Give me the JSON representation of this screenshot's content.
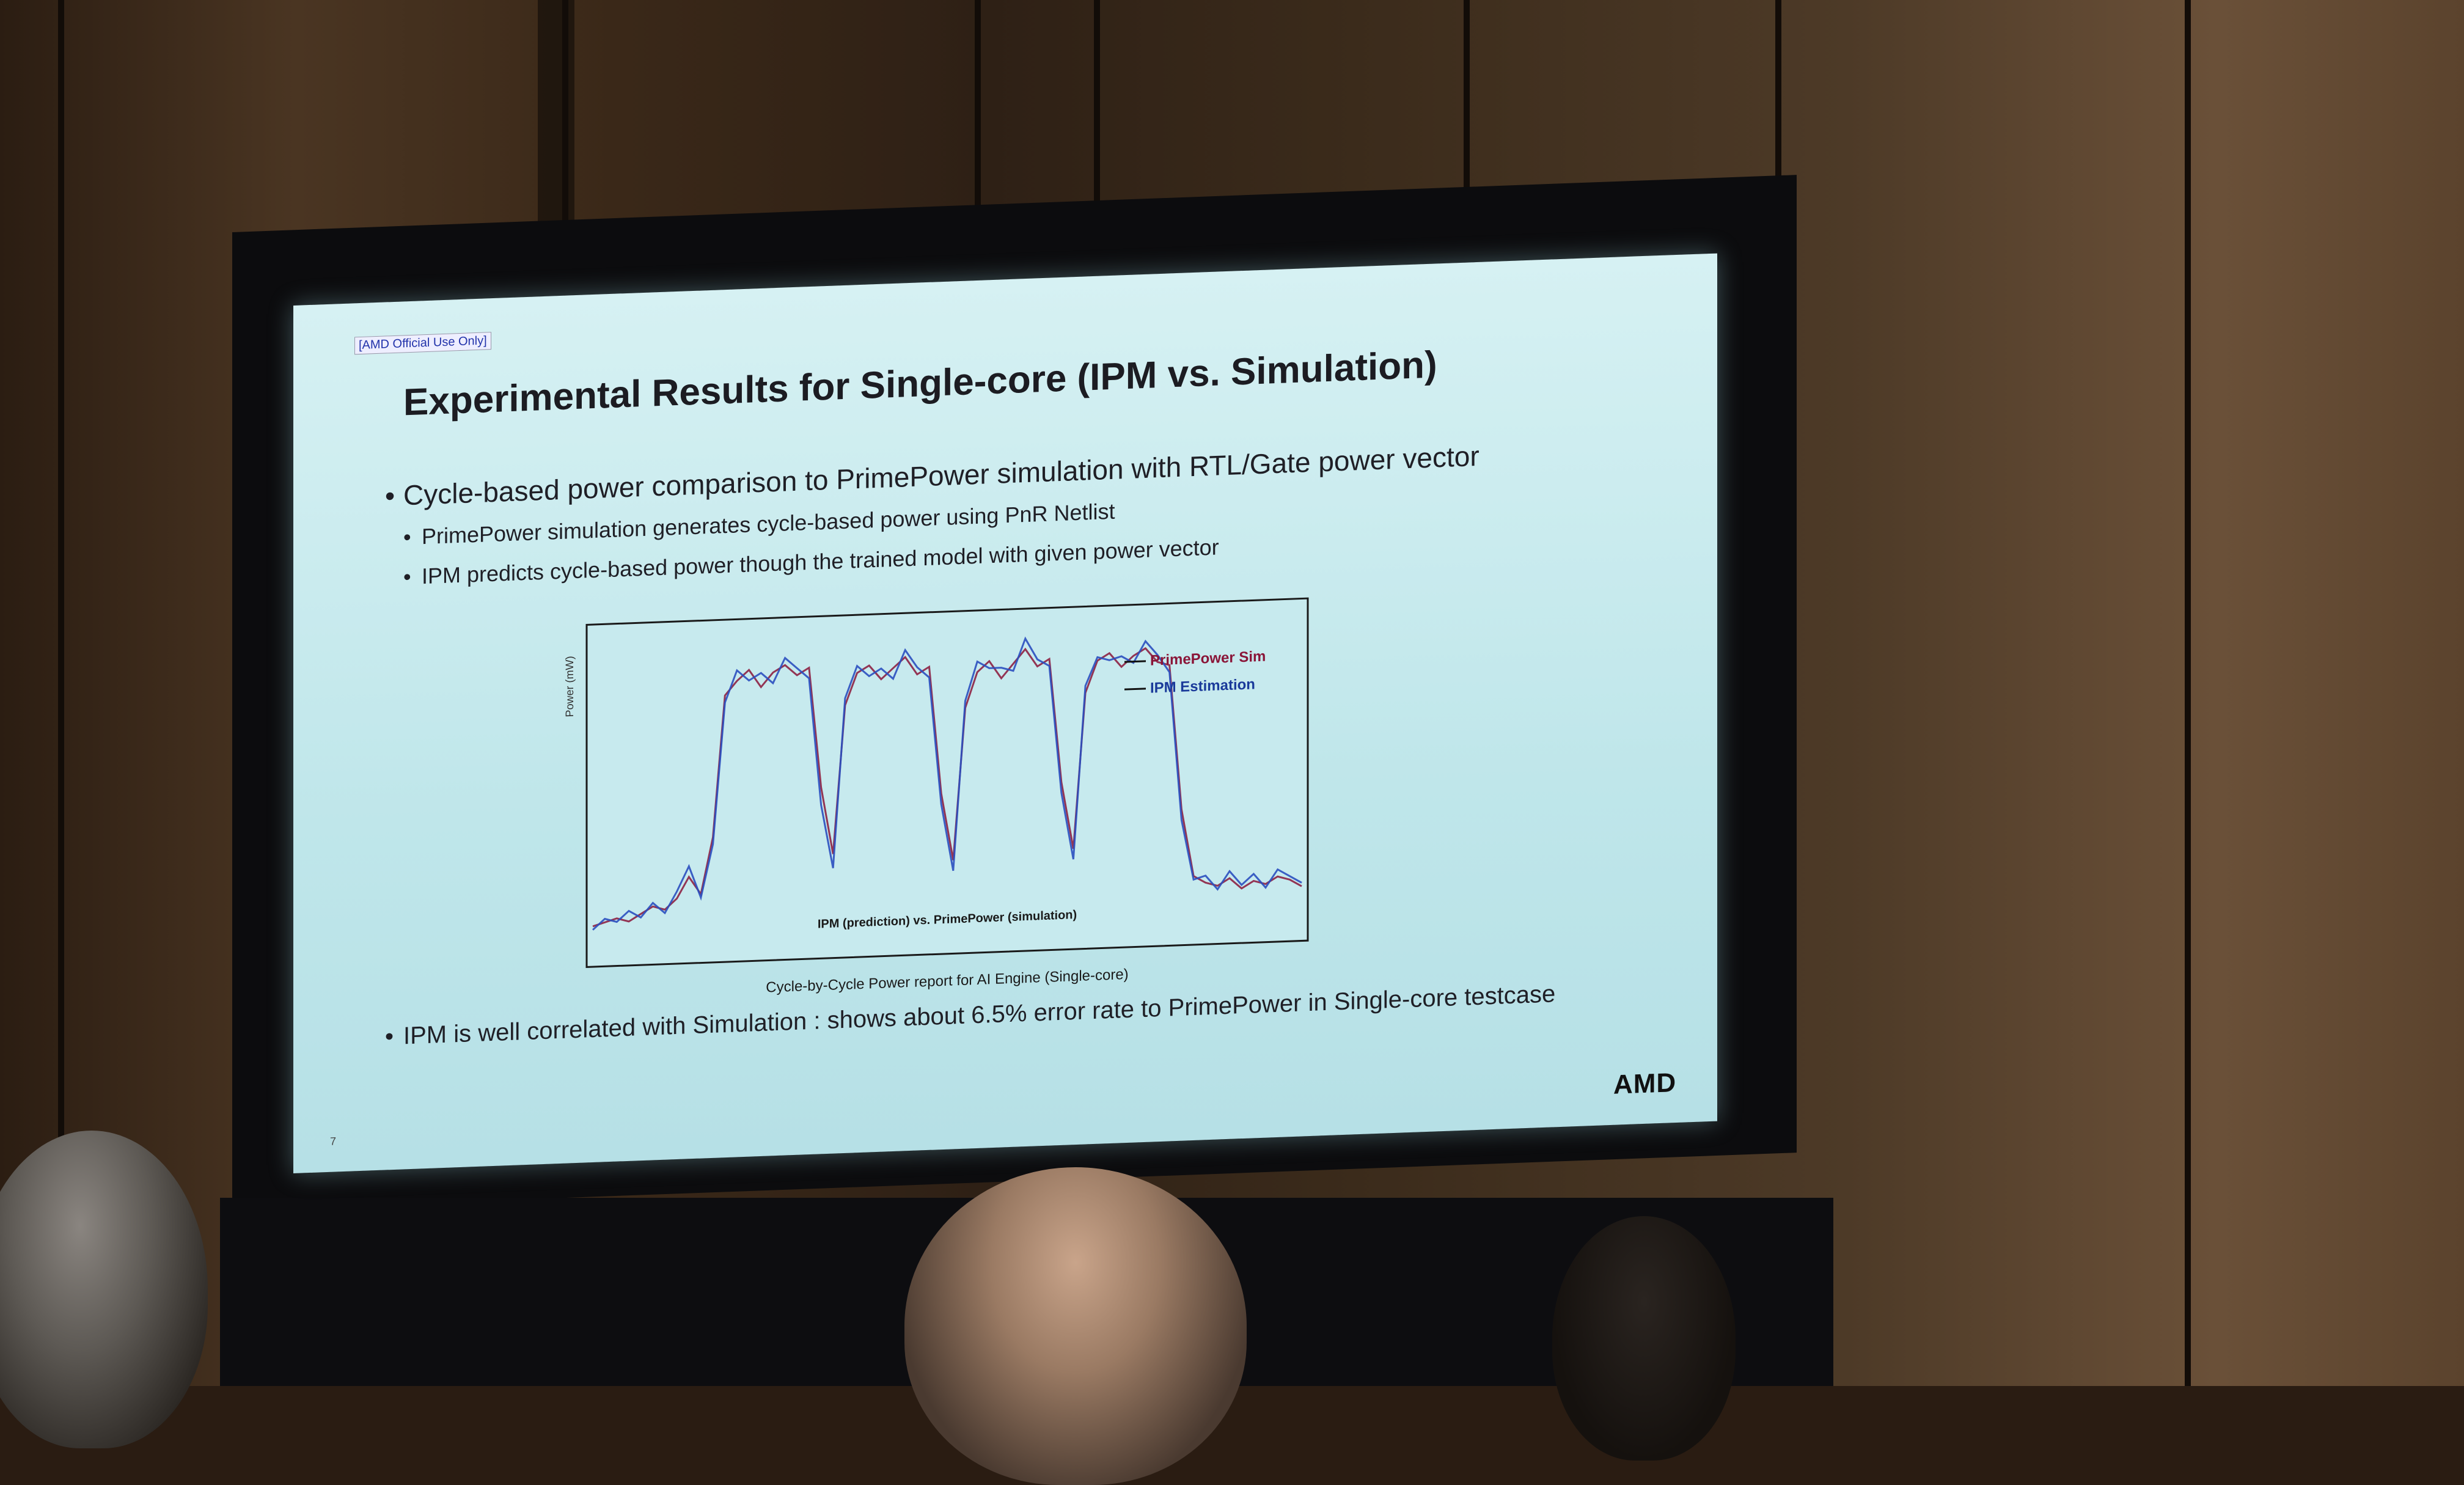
{
  "slide": {
    "official_tag": "[AMD Official Use Only]",
    "title": "Experimental Results for Single-core (IPM vs. Simulation)",
    "bullets": {
      "b1": "Cycle-based power comparison to PrimePower simulation with RTL/Gate power vector",
      "b1_1": "PrimePower simulation generates cycle-based power using PnR Netlist",
      "b1_2": "IPM predicts cycle-based power though the trained model with given power vector",
      "b2": "IPM is well correlated with Simulation : shows about 6.5% error rate to PrimePower in Single-core testcase"
    },
    "bullet_glyph": "•",
    "page_number": "7",
    "logo_text": "AMD"
  },
  "chart_data": {
    "type": "line",
    "ylabel": "Power (mW)",
    "xlabel": "Cycle-by-Cycle Power report for AI Engine (Single-core)",
    "inner_caption": "IPM (prediction) vs. PrimePower (simulation)",
    "annotations": [
      {
        "label": "PrimePower Sim",
        "color": "#8a1538"
      },
      {
        "label": "IPM Estimation",
        "color": "#1a3a9a"
      }
    ],
    "series": [
      {
        "name": "PrimePower Sim",
        "color": "#8a1538",
        "values": [
          0.8,
          0.9,
          1.0,
          0.9,
          1.1,
          1.3,
          1.2,
          1.5,
          2.1,
          1.6,
          3.2,
          7.2,
          7.6,
          7.9,
          7.4,
          7.8,
          8.0,
          7.7,
          7.9,
          4.5,
          2.6,
          6.8,
          7.7,
          7.9,
          7.5,
          7.8,
          8.1,
          7.6,
          7.8,
          4.2,
          2.3,
          6.6,
          7.6,
          7.9,
          7.4,
          7.8,
          8.2,
          7.7,
          7.9,
          4.4,
          2.5,
          6.9,
          7.8,
          8.0,
          7.6,
          7.9,
          8.1,
          7.7,
          7.6,
          3.5,
          1.6,
          1.4,
          1.3,
          1.5,
          1.2,
          1.4,
          1.3,
          1.5,
          1.4,
          1.2
        ]
      },
      {
        "name": "IPM Estimation",
        "color": "#2a4fbf",
        "values": [
          0.7,
          1.0,
          0.9,
          1.2,
          1.0,
          1.4,
          1.1,
          1.7,
          2.4,
          1.5,
          3.0,
          7.0,
          7.9,
          7.6,
          7.8,
          7.5,
          8.2,
          7.9,
          7.6,
          4.0,
          2.2,
          7.0,
          7.9,
          7.6,
          7.8,
          7.5,
          8.3,
          7.8,
          7.5,
          3.9,
          2.0,
          6.8,
          7.9,
          7.7,
          7.7,
          7.6,
          8.5,
          7.9,
          7.7,
          4.1,
          2.2,
          7.1,
          7.9,
          7.8,
          7.9,
          7.7,
          8.3,
          7.9,
          7.4,
          3.2,
          1.5,
          1.6,
          1.2,
          1.7,
          1.3,
          1.6,
          1.2,
          1.7,
          1.5,
          1.3
        ]
      }
    ]
  }
}
